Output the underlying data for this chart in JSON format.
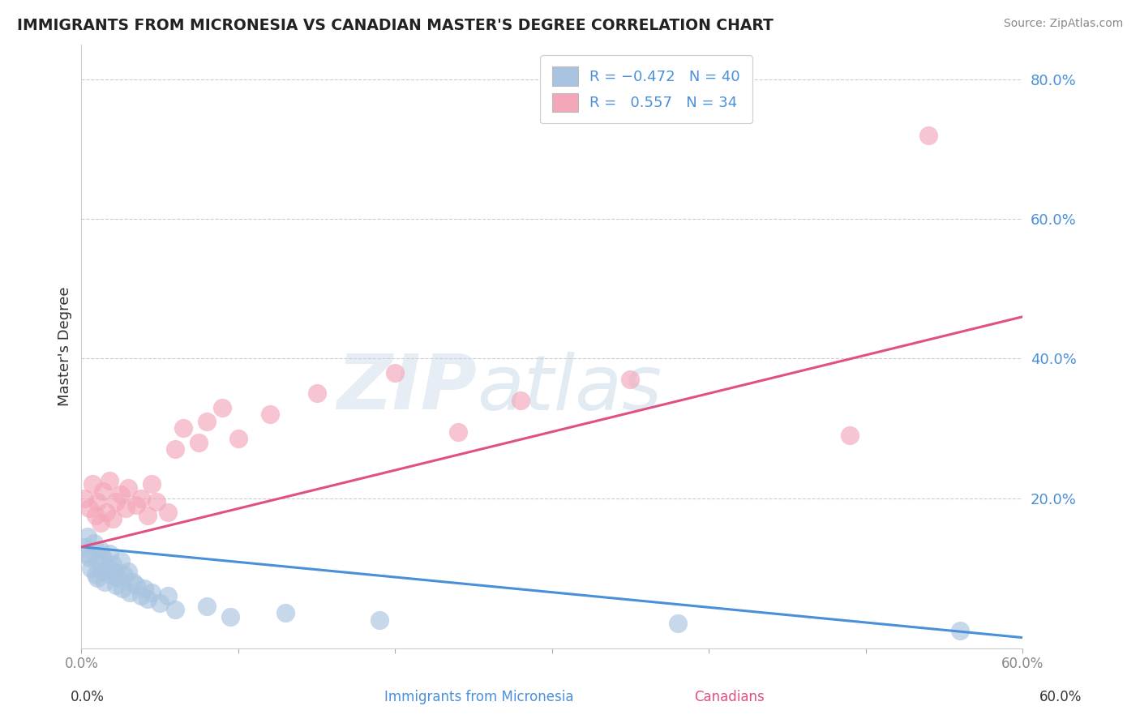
{
  "title": "IMMIGRANTS FROM MICRONESIA VS CANADIAN MASTER'S DEGREE CORRELATION CHART",
  "source": "Source: ZipAtlas.com",
  "ylabel": "Master's Degree",
  "xmin": 0.0,
  "xmax": 0.6,
  "ymin": -0.015,
  "ymax": 0.85,
  "yticks": [
    0.0,
    0.2,
    0.4,
    0.6,
    0.8
  ],
  "ytick_labels": [
    "",
    "20.0%",
    "40.0%",
    "60.0%",
    "80.0%"
  ],
  "xticks": [
    0.0,
    0.1,
    0.2,
    0.3,
    0.4,
    0.5,
    0.6
  ],
  "xtick_labels": [
    "0.0%",
    "",
    "",
    "",
    "",
    "",
    "60.0%"
  ],
  "gridline_y": [
    0.2,
    0.4,
    0.6,
    0.8
  ],
  "blue_R": -0.472,
  "blue_N": 40,
  "pink_R": 0.557,
  "pink_N": 34,
  "blue_scatter_x": [
    0.002,
    0.003,
    0.004,
    0.005,
    0.006,
    0.008,
    0.009,
    0.01,
    0.01,
    0.012,
    0.013,
    0.014,
    0.015,
    0.016,
    0.018,
    0.019,
    0.02,
    0.021,
    0.022,
    0.023,
    0.025,
    0.026,
    0.027,
    0.03,
    0.031,
    0.033,
    0.035,
    0.038,
    0.04,
    0.042,
    0.045,
    0.05,
    0.055,
    0.06,
    0.08,
    0.095,
    0.13,
    0.19,
    0.38,
    0.56
  ],
  "blue_scatter_y": [
    0.13,
    0.12,
    0.145,
    0.115,
    0.1,
    0.135,
    0.09,
    0.11,
    0.085,
    0.125,
    0.095,
    0.115,
    0.08,
    0.1,
    0.12,
    0.09,
    0.105,
    0.095,
    0.075,
    0.085,
    0.11,
    0.07,
    0.09,
    0.095,
    0.065,
    0.08,
    0.075,
    0.06,
    0.07,
    0.055,
    0.065,
    0.05,
    0.06,
    0.04,
    0.045,
    0.03,
    0.035,
    0.025,
    0.02,
    0.01
  ],
  "pink_scatter_x": [
    0.002,
    0.005,
    0.007,
    0.009,
    0.01,
    0.012,
    0.014,
    0.016,
    0.018,
    0.02,
    0.022,
    0.025,
    0.028,
    0.03,
    0.035,
    0.038,
    0.042,
    0.045,
    0.048,
    0.055,
    0.06,
    0.065,
    0.075,
    0.08,
    0.09,
    0.1,
    0.12,
    0.15,
    0.2,
    0.24,
    0.28,
    0.35,
    0.49,
    0.54
  ],
  "pink_scatter_y": [
    0.2,
    0.185,
    0.22,
    0.175,
    0.195,
    0.165,
    0.21,
    0.18,
    0.225,
    0.17,
    0.195,
    0.205,
    0.185,
    0.215,
    0.19,
    0.2,
    0.175,
    0.22,
    0.195,
    0.18,
    0.27,
    0.3,
    0.28,
    0.31,
    0.33,
    0.285,
    0.32,
    0.35,
    0.38,
    0.295,
    0.34,
    0.37,
    0.29,
    0.72
  ],
  "blue_color": "#a8c4e0",
  "pink_color": "#f4a7b9",
  "blue_line_color": "#4a90d9",
  "pink_line_color": "#e05080",
  "watermark_zip": "ZIP",
  "watermark_atlas": "atlas",
  "background_color": "#ffffff"
}
